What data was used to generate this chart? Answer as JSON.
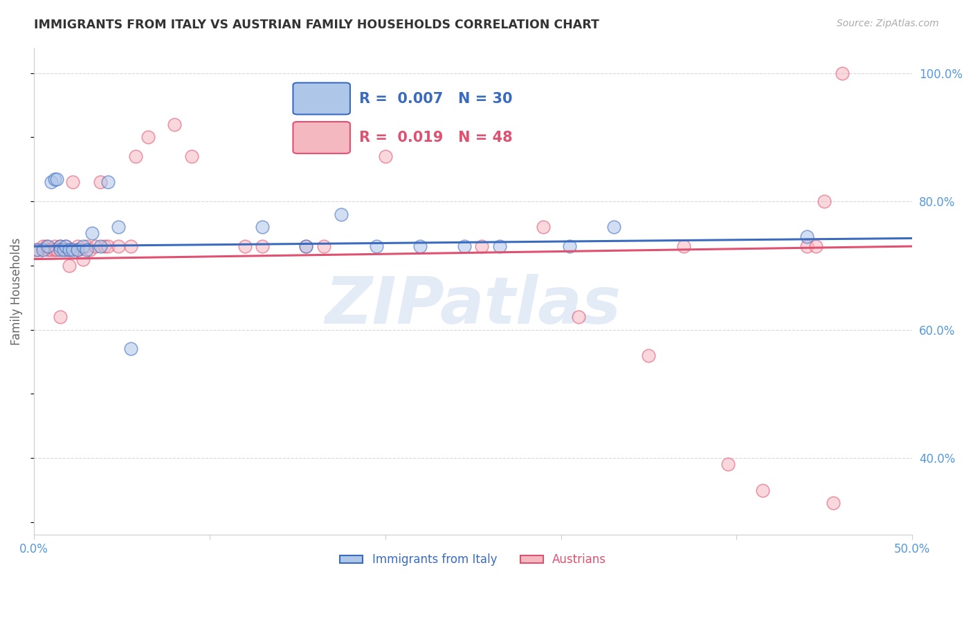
{
  "title": "IMMIGRANTS FROM ITALY VS AUSTRIAN FAMILY HOUSEHOLDS CORRELATION CHART",
  "source": "Source: ZipAtlas.com",
  "ylabel_left": "Family Households",
  "xlim": [
    0,
    0.5
  ],
  "ylim": [
    0.28,
    1.04
  ],
  "legend_blue_R": "0.007",
  "legend_blue_N": "30",
  "legend_pink_R": "0.019",
  "legend_pink_N": "48",
  "legend_blue_label": "Immigrants from Italy",
  "legend_pink_label": "Austrians",
  "blue_color": "#aec6e8",
  "pink_color": "#f4b8c1",
  "trend_blue_color": "#3a6bbf",
  "trend_pink_color": "#e05070",
  "watermark": "ZIPatlas",
  "watermark_color": "#c8d8f0",
  "title_color": "#333333",
  "right_axis_color": "#5599dd",
  "grid_color": "#d8d8d8",
  "blue_x": [
    0.002,
    0.005,
    0.008,
    0.01,
    0.012,
    0.013,
    0.015,
    0.015,
    0.017,
    0.018,
    0.02,
    0.022,
    0.025,
    0.028,
    0.03,
    0.033,
    0.038,
    0.042,
    0.048,
    0.055,
    0.13,
    0.155,
    0.175,
    0.195,
    0.22,
    0.245,
    0.265,
    0.305,
    0.33,
    0.44
  ],
  "blue_y": [
    0.725,
    0.725,
    0.73,
    0.83,
    0.835,
    0.835,
    0.73,
    0.725,
    0.725,
    0.73,
    0.725,
    0.725,
    0.725,
    0.73,
    0.725,
    0.75,
    0.73,
    0.83,
    0.76,
    0.57,
    0.76,
    0.73,
    0.78,
    0.73,
    0.73,
    0.73,
    0.73,
    0.73,
    0.76,
    0.745
  ],
  "pink_x": [
    0.001,
    0.002,
    0.005,
    0.007,
    0.008,
    0.01,
    0.012,
    0.012,
    0.013,
    0.015,
    0.015,
    0.018,
    0.018,
    0.02,
    0.02,
    0.022,
    0.025,
    0.025,
    0.028,
    0.03,
    0.032,
    0.035,
    0.038,
    0.04,
    0.042,
    0.048,
    0.055,
    0.058,
    0.065,
    0.08,
    0.09,
    0.12,
    0.13,
    0.155,
    0.165,
    0.2,
    0.255,
    0.29,
    0.31,
    0.35,
    0.37,
    0.395,
    0.415,
    0.44,
    0.445,
    0.45,
    0.455,
    0.46
  ],
  "pink_y": [
    0.725,
    0.72,
    0.73,
    0.73,
    0.725,
    0.725,
    0.73,
    0.725,
    0.725,
    0.73,
    0.62,
    0.73,
    0.725,
    0.725,
    0.7,
    0.83,
    0.73,
    0.725,
    0.71,
    0.73,
    0.725,
    0.73,
    0.83,
    0.73,
    0.73,
    0.73,
    0.73,
    0.87,
    0.9,
    0.92,
    0.87,
    0.73,
    0.73,
    0.73,
    0.73,
    0.87,
    0.73,
    0.76,
    0.62,
    0.56,
    0.73,
    0.39,
    0.35,
    0.73,
    0.73,
    0.8,
    0.33,
    1.0
  ],
  "dot_size": 180,
  "dot_alpha": 0.55,
  "dot_linewidth": 1.2,
  "trend_blue_intercept": 0.73,
  "trend_blue_slope": 0.025,
  "trend_pink_intercept": 0.71,
  "trend_pink_slope": 0.04
}
